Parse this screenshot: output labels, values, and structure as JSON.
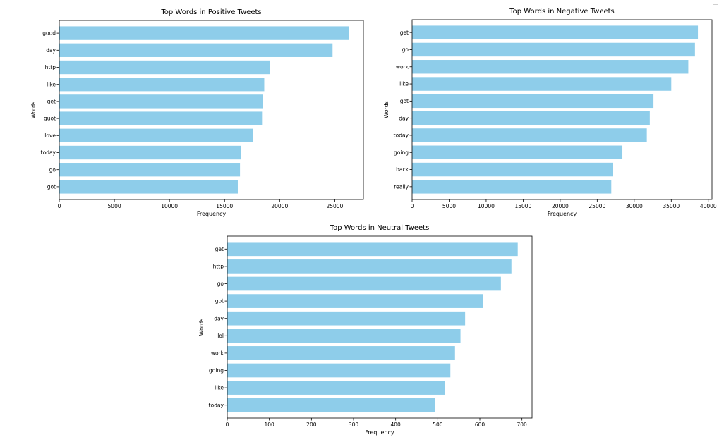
{
  "chart_data": [
    {
      "type": "bar",
      "orientation": "horizontal",
      "title": "Top Words in Positive Tweets",
      "xlabel": "Frequency",
      "ylabel": "Words",
      "categories": [
        "good",
        "day",
        "http",
        "like",
        "get",
        "quot",
        "love",
        "today",
        "go",
        "got"
      ],
      "values": [
        26300,
        24800,
        19100,
        18600,
        18500,
        18400,
        17600,
        16500,
        16400,
        16200
      ],
      "xlim": [
        0,
        27600
      ],
      "xticks": [
        0,
        5000,
        10000,
        15000,
        20000,
        25000
      ],
      "color": "#8ecdea",
      "grid": false
    },
    {
      "type": "bar",
      "orientation": "horizontal",
      "title": "Top Words in Negative Tweets",
      "xlabel": "Frequency",
      "ylabel": "Words",
      "categories": [
        "get",
        "go",
        "work",
        "like",
        "got",
        "day",
        "today",
        "going",
        "back",
        "really"
      ],
      "values": [
        38600,
        38200,
        37300,
        35000,
        32600,
        32100,
        31700,
        28400,
        27100,
        26900
      ],
      "xlim": [
        0,
        40500
      ],
      "xticks": [
        0,
        5000,
        10000,
        15000,
        20000,
        25000,
        30000,
        35000,
        40000
      ],
      "color": "#8ecdea",
      "grid": false
    },
    {
      "type": "bar",
      "orientation": "horizontal",
      "title": "Top Words in Neutral Tweets",
      "xlabel": "Frequency",
      "ylabel": "Words",
      "categories": [
        "get",
        "http",
        "go",
        "got",
        "day",
        "lol",
        "work",
        "going",
        "like",
        "today"
      ],
      "values": [
        690,
        675,
        650,
        607,
        565,
        554,
        541,
        530,
        517,
        493
      ],
      "xlim": [
        0,
        724
      ],
      "xticks": [
        0,
        100,
        200,
        300,
        400,
        500,
        600,
        700
      ],
      "color": "#8ecdea",
      "grid": false
    }
  ]
}
